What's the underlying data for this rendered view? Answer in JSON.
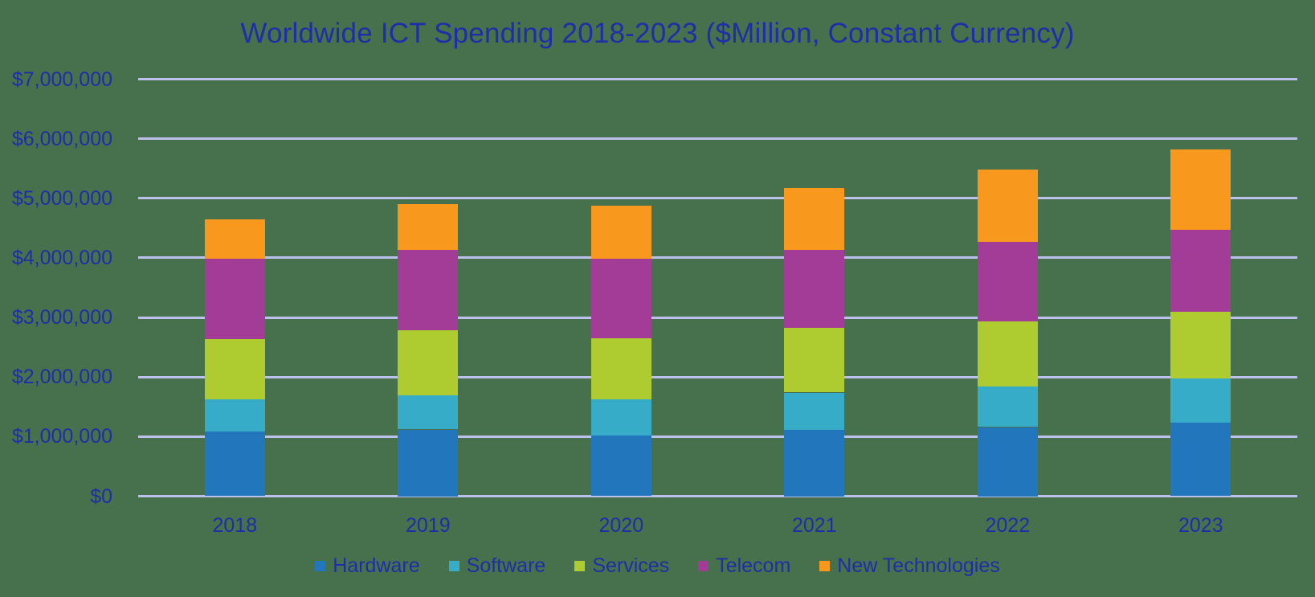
{
  "style": {
    "background": "#47704D",
    "text_color": "#1E2EA8",
    "gridline_color": "#BCC0EA"
  },
  "chart_data": {
    "type": "bar",
    "stacked": true,
    "title": "Worldwide ICT Spending 2018-2023 ($Million, Constant Currency)",
    "categories": [
      "2018",
      "2019",
      "2020",
      "2021",
      "2022",
      "2023"
    ],
    "series": [
      {
        "name": "Hardware",
        "color": "#2277BC",
        "values": [
          1090000,
          1120000,
          1020000,
          1120000,
          1160000,
          1230000
        ]
      },
      {
        "name": "Software",
        "color": "#36ACC8",
        "values": [
          540000,
          570000,
          610000,
          620000,
          680000,
          740000
        ]
      },
      {
        "name": "Services",
        "color": "#AECB2F",
        "values": [
          1010000,
          1090000,
          1020000,
          1080000,
          1090000,
          1130000
        ]
      },
      {
        "name": "Telecom",
        "color": "#A23C97",
        "values": [
          1350000,
          1350000,
          1340000,
          1310000,
          1340000,
          1370000
        ]
      },
      {
        "name": "New Technologies",
        "color": "#F8981D",
        "values": [
          660000,
          780000,
          880000,
          1040000,
          1210000,
          1350000
        ]
      }
    ],
    "totals": [
      4650000,
      4910000,
      4870000,
      5170000,
      5480000,
      5820000
    ],
    "xlabel": "",
    "ylabel": "",
    "ylim": [
      0,
      7000000
    ],
    "grid": "horizontal",
    "legend_position": "bottom",
    "y_axis_ticks": [
      {
        "value": 7000000,
        "label": "$7,000,000"
      },
      {
        "value": 6000000,
        "label": "$6,000,000"
      },
      {
        "value": 5000000,
        "label": "$5,000,000"
      },
      {
        "value": 4000000,
        "label": "$4,000,000"
      },
      {
        "value": 3000000,
        "label": "$3,000,000"
      },
      {
        "value": 2000000,
        "label": "$2,000,000"
      },
      {
        "value": 1000000,
        "label": "$1,000,000"
      },
      {
        "value": 0,
        "label": "$0"
      }
    ]
  }
}
